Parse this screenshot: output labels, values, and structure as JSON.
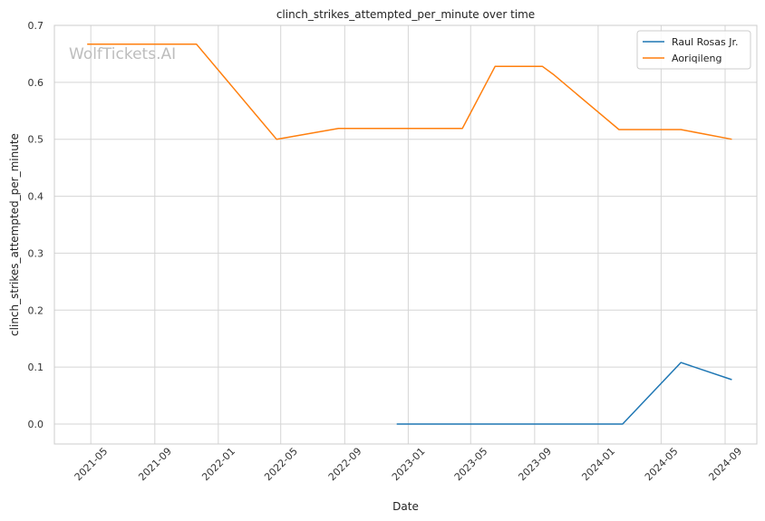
{
  "chart_data": {
    "type": "line",
    "title": "clinch_strikes_attempted_per_minute over time",
    "xlabel": "Date",
    "ylabel": "clinch_strikes_attempted_per_minute",
    "watermark": "WolfTickets.AI",
    "xlim": [
      "2021-02-20",
      "2024-11-01"
    ],
    "ylim": [
      -0.035,
      0.7
    ],
    "x_ticks": [
      "2021-05",
      "2021-09",
      "2022-01",
      "2022-05",
      "2022-09",
      "2023-01",
      "2023-05",
      "2023-09",
      "2024-01",
      "2024-05",
      "2024-09"
    ],
    "y_ticks": [
      "0.0",
      "0.1",
      "0.2",
      "0.3",
      "0.4",
      "0.5",
      "0.6",
      "0.7"
    ],
    "grid": true,
    "legend_position": "top-right",
    "series": [
      {
        "name": "Raul Rosas Jr.",
        "color": "#1f77b4",
        "x": [
          "2022-12-10",
          "2024-02-17",
          "2024-06-08",
          "2024-09-14"
        ],
        "values": [
          0.0,
          0.0,
          0.108,
          0.078
        ]
      },
      {
        "name": "Aoriqileng",
        "color": "#ff7f0e",
        "x": [
          "2021-04-24",
          "2021-11-20",
          "2022-04-23",
          "2022-08-20",
          "2023-04-15",
          "2023-06-17",
          "2023-09-16",
          "2023-10-07",
          "2024-02-10",
          "2024-06-08",
          "2024-09-14"
        ],
        "values": [
          0.667,
          0.667,
          0.5,
          0.519,
          0.519,
          0.628,
          0.628,
          0.614,
          0.517,
          0.517,
          0.5
        ]
      }
    ]
  }
}
